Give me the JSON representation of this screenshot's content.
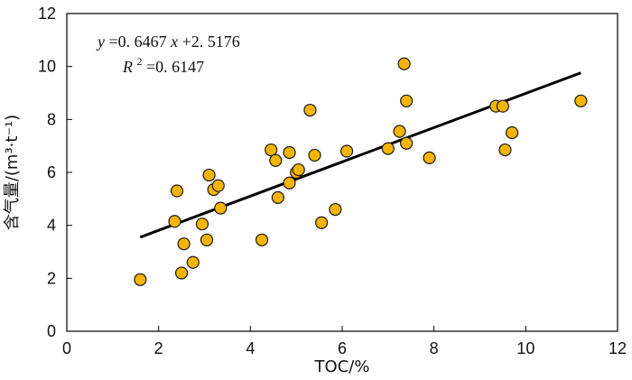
{
  "chart_data": {
    "type": "scatter",
    "title": "",
    "xlabel": "TOC/%",
    "ylabel": "含气量/(m³·t⁻¹)",
    "xlim": [
      0,
      12
    ],
    "ylim": [
      0,
      12
    ],
    "xticks": [
      0,
      2,
      4,
      6,
      8,
      10,
      12
    ],
    "yticks": [
      0,
      2,
      4,
      6,
      8,
      10,
      12
    ],
    "grid": false,
    "marker": {
      "fill": "#F5B400",
      "stroke": "#1A1A1A"
    },
    "points": [
      {
        "x": 1.6,
        "y": 1.95
      },
      {
        "x": 2.35,
        "y": 4.15
      },
      {
        "x": 2.4,
        "y": 5.3
      },
      {
        "x": 2.5,
        "y": 2.2
      },
      {
        "x": 2.55,
        "y": 3.3
      },
      {
        "x": 2.75,
        "y": 2.6
      },
      {
        "x": 2.95,
        "y": 4.05
      },
      {
        "x": 3.05,
        "y": 3.45
      },
      {
        "x": 3.1,
        "y": 5.9
      },
      {
        "x": 3.2,
        "y": 5.35
      },
      {
        "x": 3.3,
        "y": 5.5
      },
      {
        "x": 3.35,
        "y": 4.65
      },
      {
        "x": 4.25,
        "y": 3.45
      },
      {
        "x": 4.45,
        "y": 6.85
      },
      {
        "x": 4.55,
        "y": 6.45
      },
      {
        "x": 4.6,
        "y": 5.05
      },
      {
        "x": 4.85,
        "y": 6.75
      },
      {
        "x": 4.85,
        "y": 5.6
      },
      {
        "x": 5.0,
        "y": 6.0
      },
      {
        "x": 5.05,
        "y": 6.1
      },
      {
        "x": 5.3,
        "y": 8.35
      },
      {
        "x": 5.4,
        "y": 6.65
      },
      {
        "x": 5.55,
        "y": 4.1
      },
      {
        "x": 5.85,
        "y": 4.6
      },
      {
        "x": 6.1,
        "y": 6.8
      },
      {
        "x": 7.0,
        "y": 6.9
      },
      {
        "x": 7.25,
        "y": 7.55
      },
      {
        "x": 7.35,
        "y": 10.1
      },
      {
        "x": 7.4,
        "y": 8.7
      },
      {
        "x": 7.4,
        "y": 7.1
      },
      {
        "x": 7.9,
        "y": 6.55
      },
      {
        "x": 9.35,
        "y": 8.5
      },
      {
        "x": 9.5,
        "y": 8.5
      },
      {
        "x": 9.55,
        "y": 6.85
      },
      {
        "x": 9.7,
        "y": 7.5
      },
      {
        "x": 11.2,
        "y": 8.7
      }
    ],
    "trendline": {
      "slope": 0.6467,
      "intercept": 2.5176,
      "x_start": 1.6,
      "x_end": 11.2,
      "color": "#000000"
    },
    "annotations": {
      "equation": {
        "y_var": "y",
        "equals": "=0. 6467",
        "x_var": "x",
        "rest": "+2. 5176"
      },
      "r2": {
        "var": "R",
        "sup": "2",
        "value": "=0. 6147"
      }
    }
  }
}
